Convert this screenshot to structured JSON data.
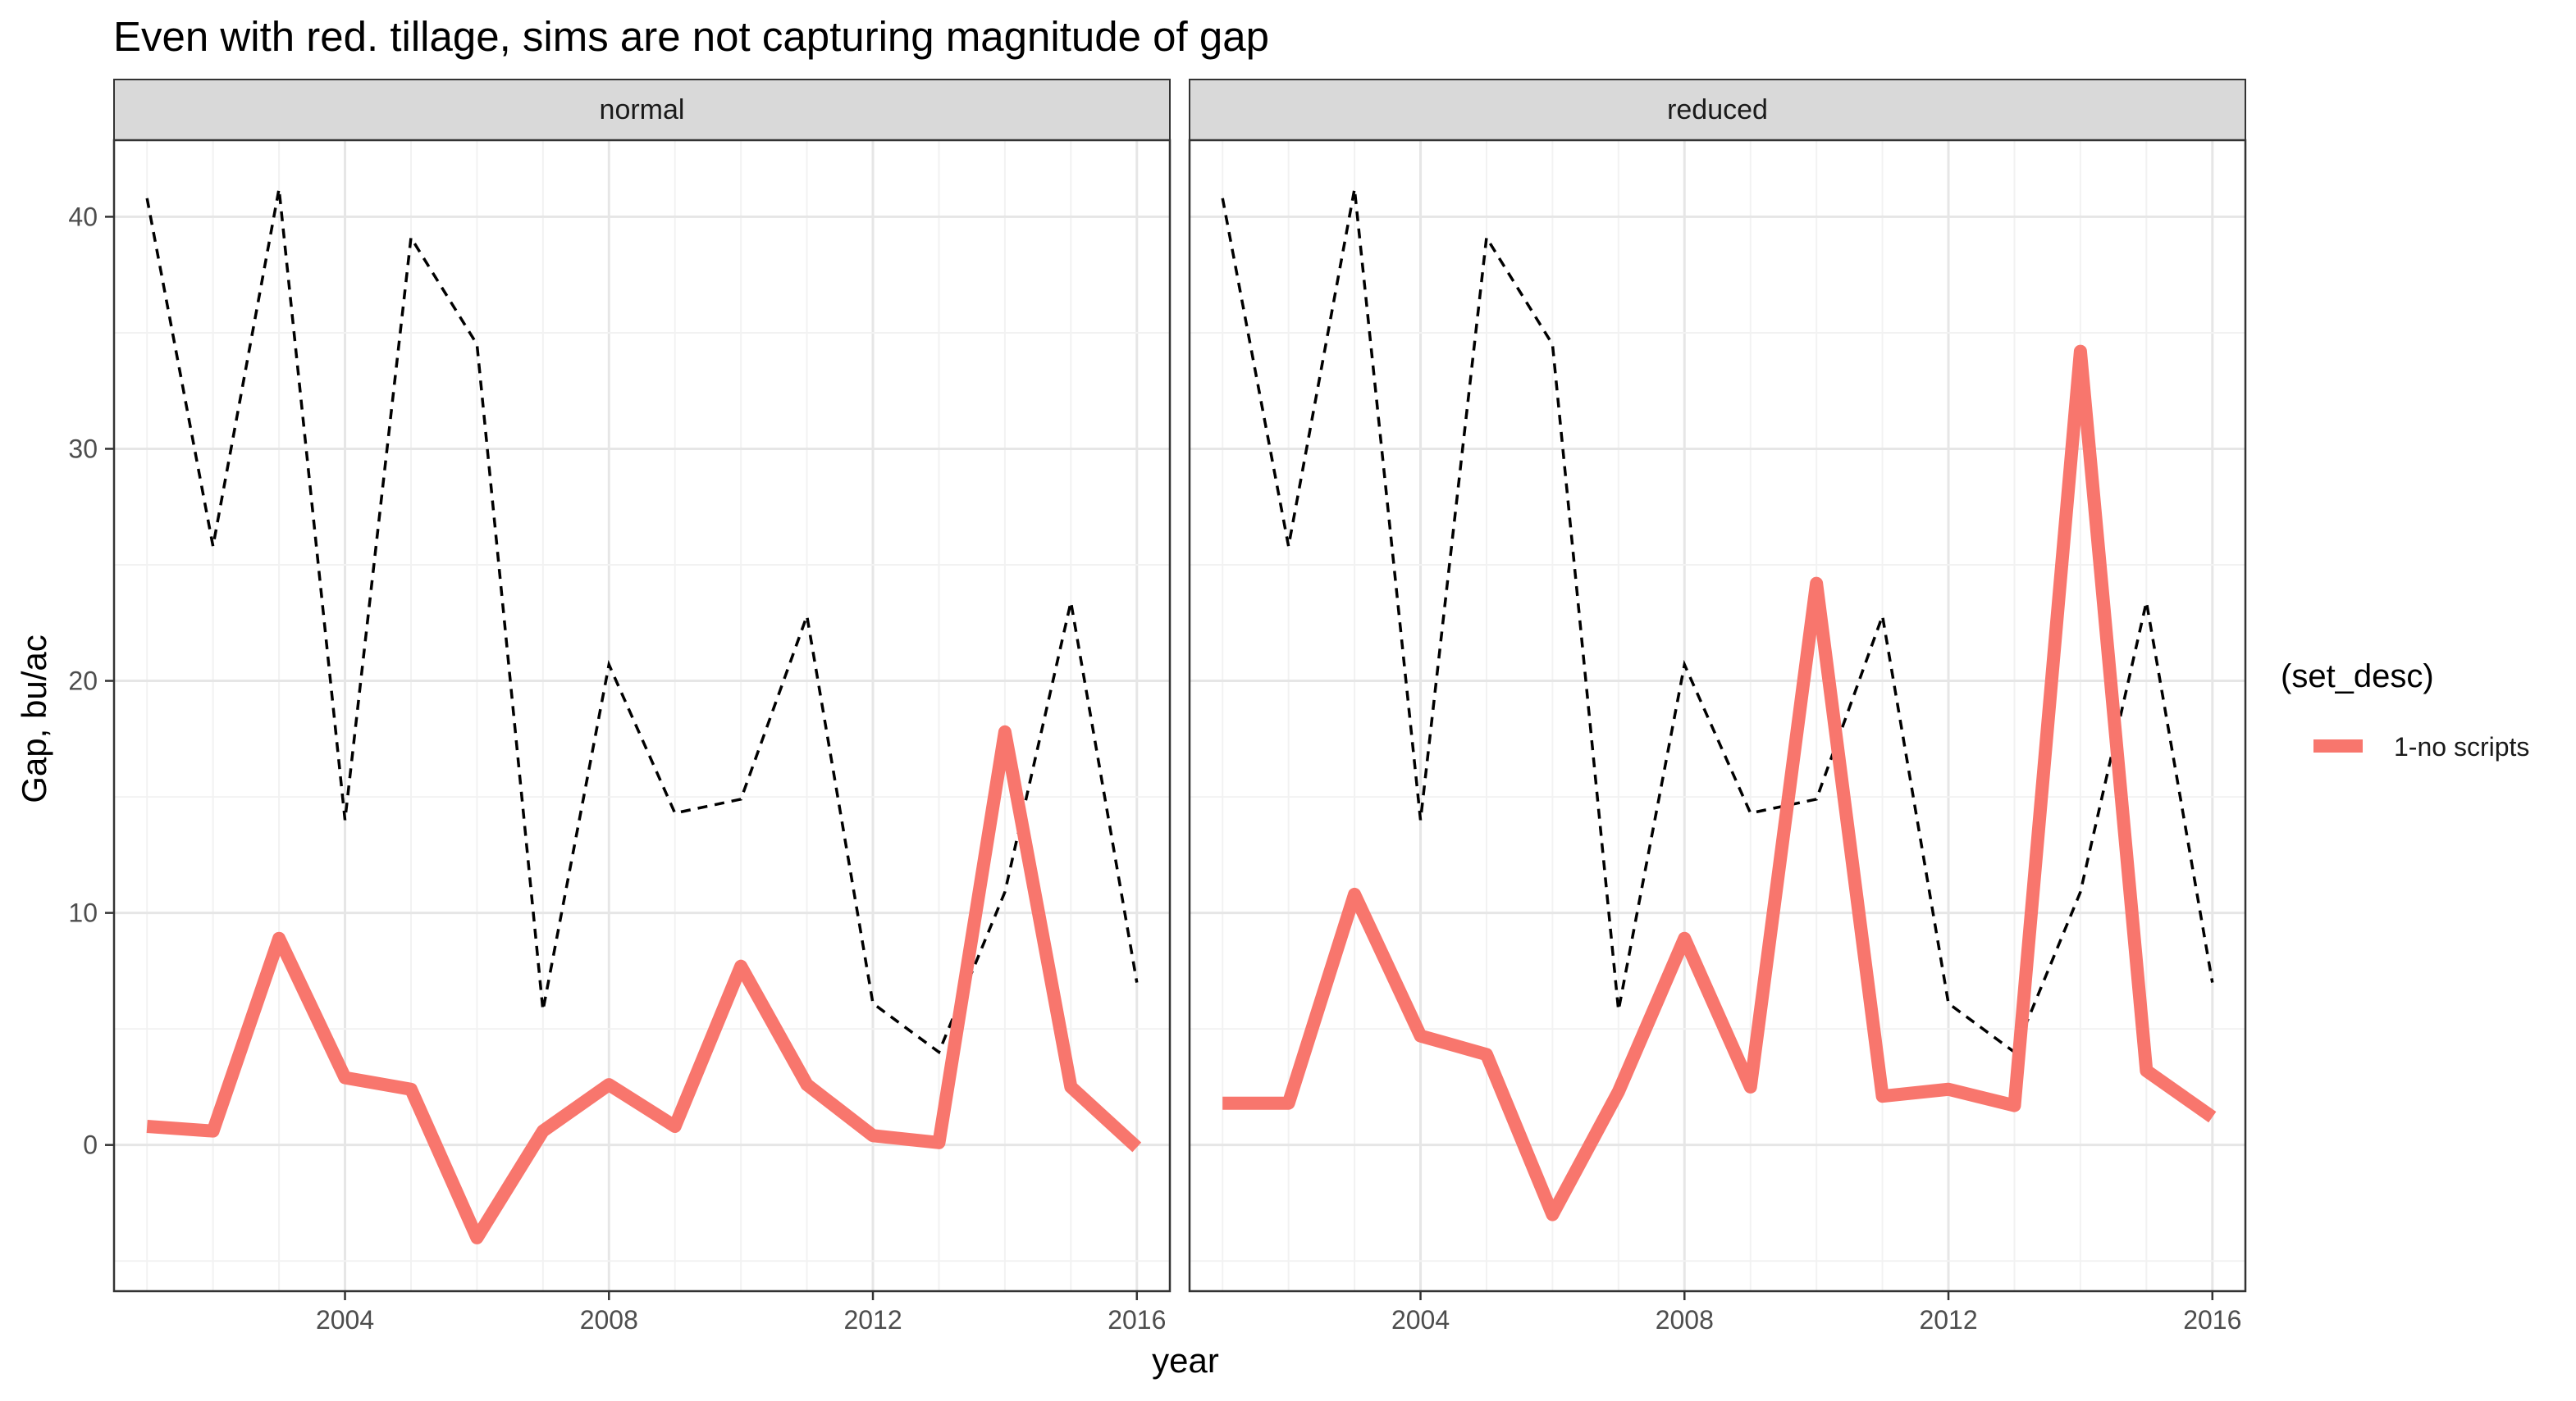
{
  "chart_data": {
    "type": "line",
    "title": "Even with red. tillage, sims are not capturing magnitude of gap",
    "xlabel": "year",
    "ylabel": "Gap, bu/ac",
    "xlim": [
      2000.5,
      2016.5
    ],
    "ylim": [
      -6.3,
      43.3
    ],
    "x_ticks": [
      2004,
      2008,
      2012,
      2016
    ],
    "y_ticks": [
      0,
      10,
      20,
      30,
      40
    ],
    "grid": true,
    "legend": {
      "title": "(set_desc)",
      "position": "right",
      "entries": [
        {
          "label": "1-no scripts",
          "color": "#F8766D"
        }
      ]
    },
    "reference_line": {
      "style": "dashed",
      "color": "#000000",
      "x": [
        2001,
        2002,
        2003,
        2004,
        2005,
        2006,
        2007,
        2008,
        2009,
        2010,
        2011,
        2012,
        2013,
        2014,
        2015,
        2016
      ],
      "values": [
        40.8,
        25.8,
        41.2,
        14.0,
        39.1,
        34.5,
        5.8,
        20.7,
        14.3,
        14.9,
        22.8,
        6.1,
        4.0,
        10.9,
        23.4,
        7.0
      ]
    },
    "panels": [
      {
        "strip": "normal",
        "series": [
          {
            "name": "1-no scripts",
            "color": "#F8766D",
            "x": [
              2001,
              2002,
              2003,
              2004,
              2005,
              2006,
              2007,
              2008,
              2009,
              2010,
              2011,
              2012,
              2013,
              2014,
              2015,
              2016
            ],
            "values": [
              0.8,
              0.6,
              8.9,
              2.9,
              2.4,
              -4.0,
              0.6,
              2.6,
              0.8,
              7.7,
              2.6,
              0.4,
              0.1,
              17.8,
              2.5,
              -0.1
            ]
          }
        ]
      },
      {
        "strip": "reduced",
        "series": [
          {
            "name": "1-no scripts",
            "color": "#F8766D",
            "x": [
              2001,
              2002,
              2003,
              2004,
              2005,
              2006,
              2007,
              2008,
              2009,
              2010,
              2011,
              2012,
              2013,
              2014,
              2015,
              2016
            ],
            "values": [
              1.8,
              1.8,
              10.8,
              4.7,
              3.9,
              -3.0,
              2.3,
              8.9,
              2.5,
              24.2,
              2.1,
              2.4,
              1.7,
              34.2,
              3.2,
              1.2
            ]
          }
        ]
      }
    ]
  }
}
